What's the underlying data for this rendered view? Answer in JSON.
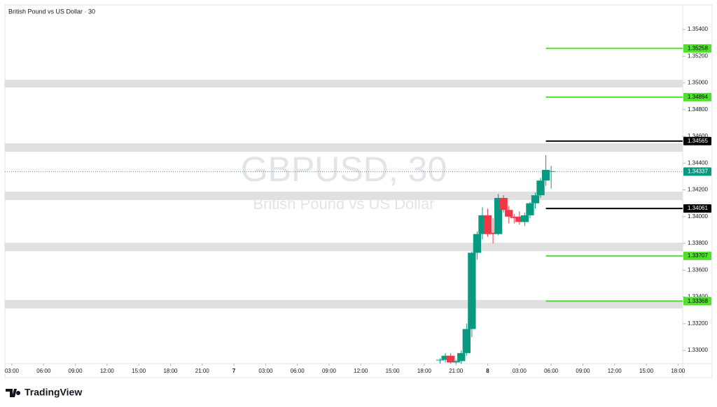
{
  "chart_data": {
    "type": "candlestick",
    "title": "British Pound vs US Dollar · 30",
    "watermark": "GBPUSD, 30",
    "watermark_subtitle": "British Pound vs US Dollar",
    "x": [
      40.5,
      41,
      41.5,
      42,
      42.5,
      43,
      43.5,
      44,
      44.5,
      45,
      45.5,
      46,
      46.5,
      47,
      47.5,
      48,
      48.5,
      49,
      49.5,
      50,
      50.5,
      51
    ],
    "open": [
      1.32925,
      1.3293,
      1.3296,
      1.3291,
      1.3292,
      1.3298,
      1.3316,
      1.3373,
      1.3387,
      1.3401,
      1.3388,
      1.3387,
      1.3414,
      1.3405,
      1.34,
      1.34,
      1.3396,
      1.3401,
      1.341,
      1.3416,
      1.3427,
      1.3434
    ],
    "high": [
      1.3294,
      1.3298,
      1.3298,
      1.3293,
      1.33,
      1.332,
      1.3374,
      1.3389,
      1.3407,
      1.3406,
      1.3399,
      1.3417,
      1.3416,
      1.3408,
      1.3402,
      1.3404,
      1.3403,
      1.3411,
      1.3418,
      1.3429,
      1.3446,
      1.3438
    ],
    "low": [
      1.329,
      1.3291,
      1.329,
      1.329,
      1.329,
      1.3296,
      1.331,
      1.3368,
      1.3383,
      1.3385,
      1.338,
      1.3386,
      1.3403,
      1.3395,
      1.3395,
      1.3394,
      1.3393,
      1.3399,
      1.3406,
      1.3414,
      1.3423,
      1.3421
    ],
    "close": [
      1.3293,
      1.3296,
      1.3291,
      1.3292,
      1.3298,
      1.3316,
      1.3373,
      1.3387,
      1.3401,
      1.3387,
      1.3387,
      1.3414,
      1.3405,
      1.34,
      1.3399,
      1.3396,
      1.3401,
      1.341,
      1.3416,
      1.3427,
      1.3435,
      1.3434
    ],
    "up_color": "#089981",
    "down_color": "#f23645",
    "xlim": [
      -0.66,
      63.44
    ],
    "ylim": [
      1.32901,
      1.35578
    ],
    "xticks": [
      {
        "value": 0,
        "label": "03:00"
      },
      {
        "value": 3,
        "label": "06:00"
      },
      {
        "value": 6,
        "label": "09:00"
      },
      {
        "value": 9,
        "label": "12:00"
      },
      {
        "value": 12,
        "label": "15:00"
      },
      {
        "value": 15,
        "label": "18:00"
      },
      {
        "value": 18,
        "label": "21:00"
      },
      {
        "value": 21,
        "label": "7"
      },
      {
        "value": 24,
        "label": "03:00"
      },
      {
        "value": 27,
        "label": "06:00"
      },
      {
        "value": 30,
        "label": "09:00"
      },
      {
        "value": 33,
        "label": "12:00"
      },
      {
        "value": 36,
        "label": "15:00"
      },
      {
        "value": 39,
        "label": "18:00"
      },
      {
        "value": 42,
        "label": "21:00"
      },
      {
        "value": 45,
        "label": "8"
      },
      {
        "value": 48,
        "label": "03:00"
      },
      {
        "value": 51,
        "label": "06:00"
      },
      {
        "value": 54,
        "label": "09:00"
      },
      {
        "value": 57,
        "label": "12:00"
      },
      {
        "value": 60,
        "label": "15:00"
      },
      {
        "value": 63,
        "label": "18:00"
      }
    ],
    "yticks": [
      {
        "value": 1.354,
        "label": "1.35400"
      },
      {
        "value": 1.352,
        "label": "1.35200"
      },
      {
        "value": 1.35,
        "label": "1.35000"
      },
      {
        "value": 1.348,
        "label": "1.34800"
      },
      {
        "value": 1.346,
        "label": "1.34600"
      },
      {
        "value": 1.344,
        "label": "1.34400"
      },
      {
        "value": 1.342,
        "label": "1.34200"
      },
      {
        "value": 1.34,
        "label": "1.34000"
      },
      {
        "value": 1.338,
        "label": "1.33800"
      },
      {
        "value": 1.336,
        "label": "1.33600"
      },
      {
        "value": 1.334,
        "label": "1.33400"
      },
      {
        "value": 1.332,
        "label": "1.33200"
      },
      {
        "value": 1.33,
        "label": "1.33000"
      }
    ],
    "zones": [
      [
        1.34966,
        1.35024
      ],
      [
        1.34485,
        1.34548
      ],
      [
        1.34124,
        1.34187
      ],
      [
        1.33742,
        1.33805
      ],
      [
        1.33314,
        1.33377
      ]
    ],
    "zone_color": "#e0e0e0",
    "levels": [
      {
        "value": 1.35258,
        "color": "#52e02e",
        "start": 50.5
      },
      {
        "value": 1.34894,
        "color": "#52e02e",
        "start": 50.5
      },
      {
        "value": 1.34565,
        "color": "#000000",
        "start": 50.5
      },
      {
        "value": 1.34061,
        "color": "#000000",
        "start": 50.5
      },
      {
        "value": 1.33707,
        "color": "#52e02e",
        "start": 50.5
      },
      {
        "value": 1.33368,
        "color": "#52e02e",
        "start": 50.5
      }
    ],
    "last_price": {
      "value": 1.34337,
      "color": "#089981"
    }
  },
  "brand": "TradingView"
}
